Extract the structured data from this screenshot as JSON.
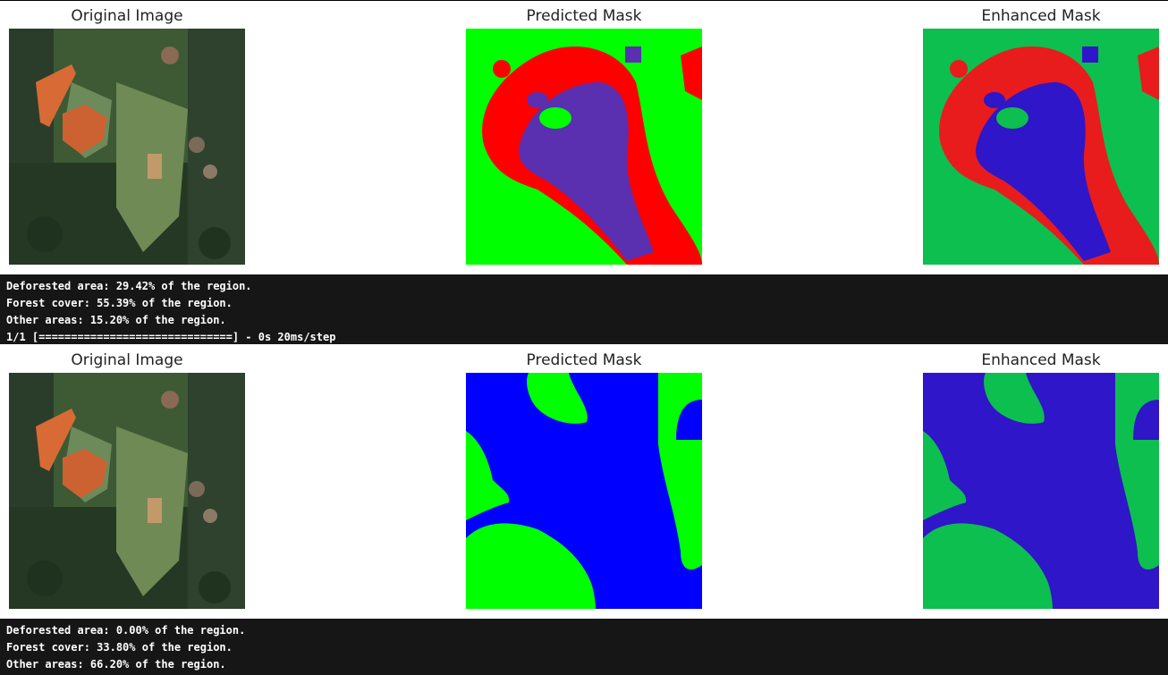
{
  "colors": {
    "console_bg": "#161616",
    "console_text": "#ffffff",
    "predicted_green": "#00ff00",
    "predicted_red": "#ff0000",
    "predicted_purple": "#5a2fb0",
    "predicted_blue": "#0000ff",
    "enhanced_green": "#0dbf4e",
    "enhanced_red": "#e81c1c",
    "enhanced_blue": "#2f16c8"
  },
  "rows": [
    {
      "titles": {
        "original": "Original Image",
        "predicted": "Predicted Mask",
        "enhanced": "Enhanced Mask"
      },
      "output": [
        "Deforested area: 29.42% of the region.",
        "Forest cover: 55.39% of the region.",
        "Other areas: 15.20% of the region.",
        "1/1 [==============================] - 0s 20ms/step"
      ]
    },
    {
      "titles": {
        "original": "Original Image",
        "predicted": "Predicted Mask",
        "enhanced": "Enhanced Mask"
      },
      "output": [
        "Deforested area: 0.00% of the region.",
        "Forest cover: 33.80% of the region.",
        "Other areas: 66.20% of the region."
      ]
    }
  ]
}
